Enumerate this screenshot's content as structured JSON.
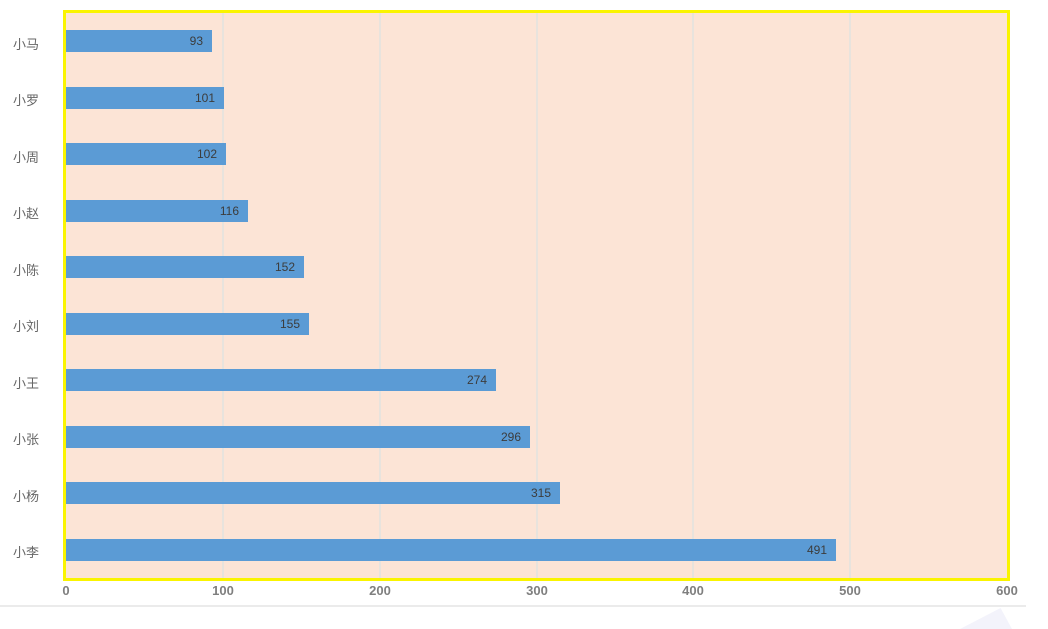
{
  "chart_data": {
    "type": "bar",
    "orientation": "horizontal",
    "title": "",
    "xlabel": "",
    "ylabel": "",
    "categories": [
      "小马",
      "小罗",
      "小周",
      "小赵",
      "小陈",
      "小刘",
      "小王",
      "小张",
      "小杨",
      "小李"
    ],
    "values": [
      93,
      101,
      102,
      116,
      152,
      155,
      274,
      296,
      315,
      491
    ],
    "xlim": [
      0,
      600
    ],
    "x_ticks": [
      0,
      100,
      200,
      300,
      400,
      500,
      600
    ],
    "grid": "vertical-only",
    "legend": "none",
    "data_labels": "inside-end"
  },
  "colors": {
    "bar_fill": "#5B9BD5",
    "plot_background": "#FCE4D6",
    "plot_border": "#FAF400",
    "gridline": "#E8E3DD",
    "value_label": "#3C3C3C",
    "category_label": "#666666",
    "tick_label": "#7F7F7F",
    "page_background": "#FFFFFF",
    "separator": "#EBEBEB",
    "watermark": "#F3F3FB"
  }
}
